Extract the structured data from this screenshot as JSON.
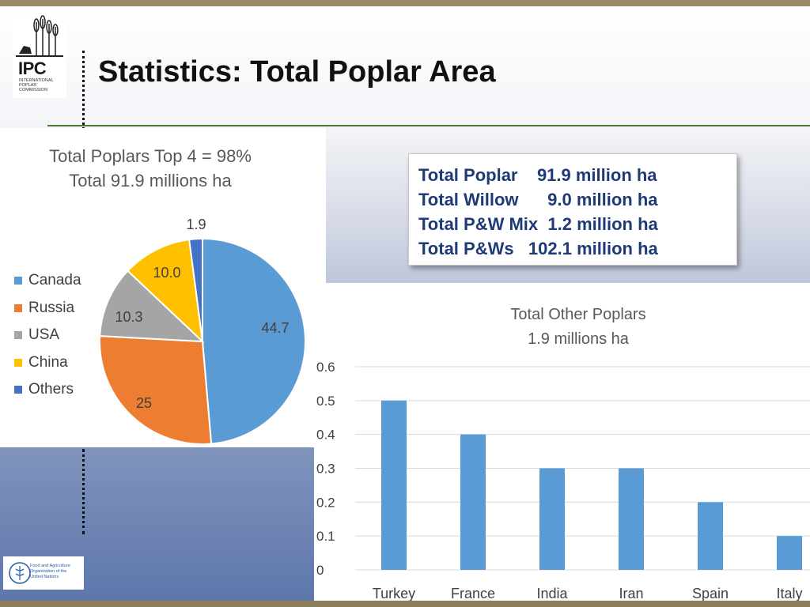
{
  "header": {
    "title": "Statistics: Total Poplar Area",
    "logo": {
      "acronym": "IPC",
      "subtitle": "INTERNATIONAL POPLAR COMMISSION"
    }
  },
  "stats_box": {
    "rows": [
      "Total Poplar    91.9 million ha",
      "Total Willow      9.0 million ha",
      "Total P&W Mix  1.2 million ha",
      "Total P&Ws   102.1 million ha"
    ]
  },
  "footer": {
    "fao_text": "Food and Agriculture Organization of the United Nations"
  },
  "colors": {
    "accent": "#1f3a78",
    "green_rule": "#4a7a3a",
    "bar": "#5b9bd5"
  },
  "chart_data": [
    {
      "type": "pie",
      "title": "Total Poplars Top 4 = 98%",
      "subtitle": "Total 91.9 millions ha",
      "legend_position": "left",
      "categories": [
        "Canada",
        "Russia",
        "USA",
        "China",
        "Others"
      ],
      "values": [
        44.7,
        25,
        10.3,
        10.0,
        1.9
      ],
      "labels": [
        "44.7",
        "25",
        "10.3",
        "10.0",
        "1.9"
      ],
      "colors": [
        "#5b9bd5",
        "#ed7d31",
        "#a5a5a5",
        "#ffc000",
        "#4472c4"
      ]
    },
    {
      "type": "bar",
      "title": "Total Other Poplars",
      "subtitle": "1.9 millions ha",
      "categories": [
        "Turkey",
        "France",
        "India",
        "Iran",
        "Spain",
        "Italy"
      ],
      "values": [
        0.5,
        0.4,
        0.3,
        0.3,
        0.2,
        0.1
      ],
      "ylim": [
        0,
        0.6
      ],
      "yticks": [
        "0",
        "0.1",
        "0.2",
        "0.3",
        "0.4",
        "0.5",
        "0.6"
      ],
      "grid": true,
      "color": "#5b9bd5"
    }
  ]
}
